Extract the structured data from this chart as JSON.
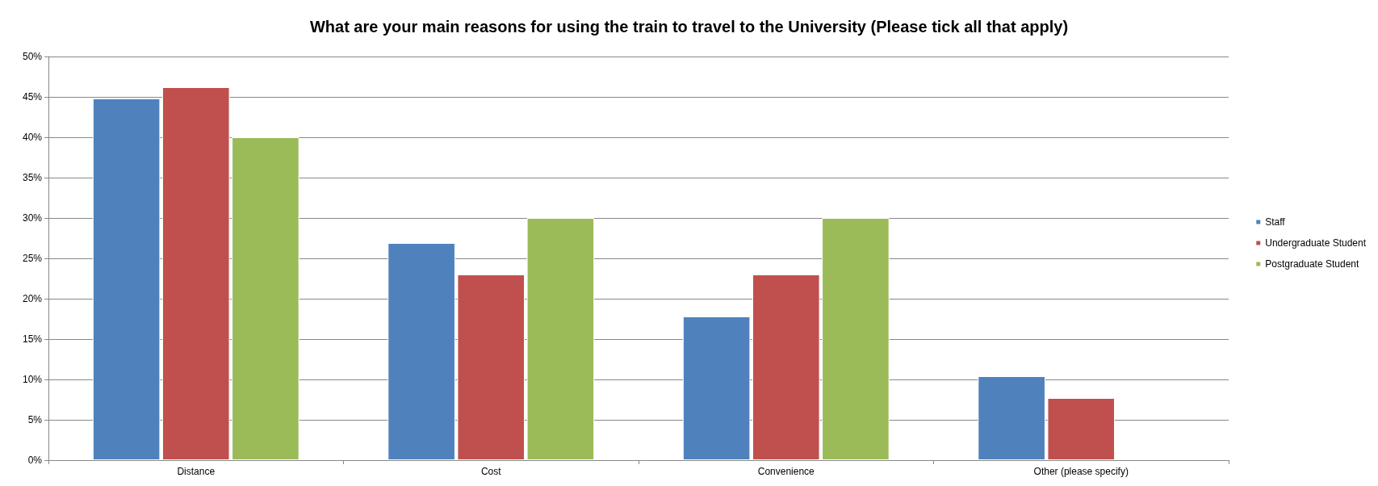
{
  "chart_data": {
    "type": "bar",
    "title": "What are your main reasons for using the train to travel to the University (Please tick all that apply)",
    "categories": [
      "Distance",
      "Cost",
      "Convenience",
      "Other (please specify)"
    ],
    "series": [
      {
        "name": "Staff",
        "color": "#4f81bd",
        "values": [
          44.8,
          26.9,
          17.8,
          10.4
        ]
      },
      {
        "name": "Undergraduate Student",
        "color": "#c0504d",
        "values": [
          46.2,
          23.0,
          23.0,
          7.7
        ]
      },
      {
        "name": "Postgraduate Student",
        "color": "#9bbb59",
        "values": [
          40.0,
          30.0,
          30.0,
          null
        ]
      }
    ],
    "ylim": [
      0,
      50
    ],
    "yticks": [
      {
        "value": 0,
        "label": "0%"
      },
      {
        "value": 5,
        "label": "5%"
      },
      {
        "value": 10,
        "label": "10%"
      },
      {
        "value": 15,
        "label": "15%"
      },
      {
        "value": 20,
        "label": "20%"
      },
      {
        "value": 25,
        "label": "25%"
      },
      {
        "value": 30,
        "label": "30%"
      },
      {
        "value": 35,
        "label": "35%"
      },
      {
        "value": 40,
        "label": "40%"
      },
      {
        "value": 45,
        "label": "45%"
      },
      {
        "value": 50,
        "label": "50%"
      }
    ],
    "grid": "y",
    "legend": "right"
  }
}
